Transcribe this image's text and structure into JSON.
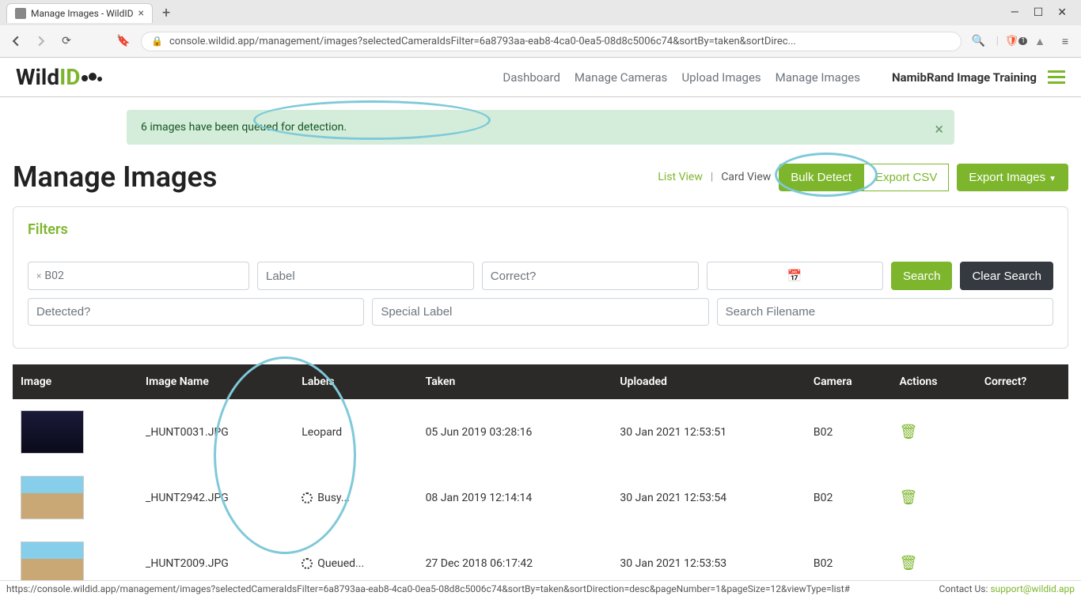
{
  "browser": {
    "tab_title": "Manage Images - WildID",
    "url": "console.wildid.app/management/images?selectedCameraIdsFilter=6a8793aa-eab8-4ca0-0ea5-08d8c5006c74&sortBy=taken&sortDirec...",
    "badge_count": "1"
  },
  "logo": {
    "part1": "Wild",
    "part2": "ID"
  },
  "nav": {
    "items": [
      "Dashboard",
      "Manage Cameras",
      "Upload Images",
      "Manage Images"
    ],
    "account": "NamibRand Image Training"
  },
  "alert": {
    "text": "6 images have been queued for detection."
  },
  "page_title": "Manage Images",
  "view": {
    "list": "List View",
    "card": "Card View",
    "bulk_detect": "Bulk Detect",
    "export_csv": "Export CSV",
    "export_images": "Export Images"
  },
  "filters": {
    "title": "Filters",
    "tag": "B02",
    "label_ph": "Label",
    "correct_ph": "Correct?",
    "detected_ph": "Detected?",
    "special_ph": "Special Label",
    "filename_ph": "Search Filename",
    "search_btn": "Search",
    "clear_btn": "Clear Search"
  },
  "table": {
    "headers": {
      "image": "Image",
      "name": "Image Name",
      "labels": "Labels",
      "taken": "Taken",
      "uploaded": "Uploaded",
      "camera": "Camera",
      "actions": "Actions",
      "correct": "Correct?"
    },
    "rows": [
      {
        "name": "_HUNT0031.JPG",
        "label": "Leopard",
        "taken": "05 Jun 2019 03:28:16",
        "uploaded": "30 Jan 2021 12:53:51",
        "camera": "B02",
        "thumb": "night"
      },
      {
        "name": "_HUNT2942.JPG",
        "label": "Busy...",
        "spinner": true,
        "taken": "08 Jan 2019 12:14:14",
        "uploaded": "30 Jan 2021 12:53:54",
        "camera": "B02",
        "thumb": "day"
      },
      {
        "name": "_HUNT2009.JPG",
        "label": "Queued...",
        "spinner": true,
        "taken": "27 Dec 2018 06:17:42",
        "uploaded": "30 Jan 2021 12:53:53",
        "camera": "B02",
        "thumb": "day"
      }
    ]
  },
  "status": {
    "url": "https://console.wildid.app/management/images?selectedCameraIdsFilter=6a8793aa-eab8-4ca0-0ea5-08d8c5006c74&sortBy=taken&sortDirection=desc&pageNumber=1&pageSize=12&viewType=list#",
    "contact_label": "Contact Us: ",
    "contact_email": "support@wildid.app"
  },
  "colors": {
    "accent": "#7db62c",
    "alert_bg": "#d4edda",
    "ellipse": "#7fc9d9",
    "table_header": "#2c2a29"
  }
}
